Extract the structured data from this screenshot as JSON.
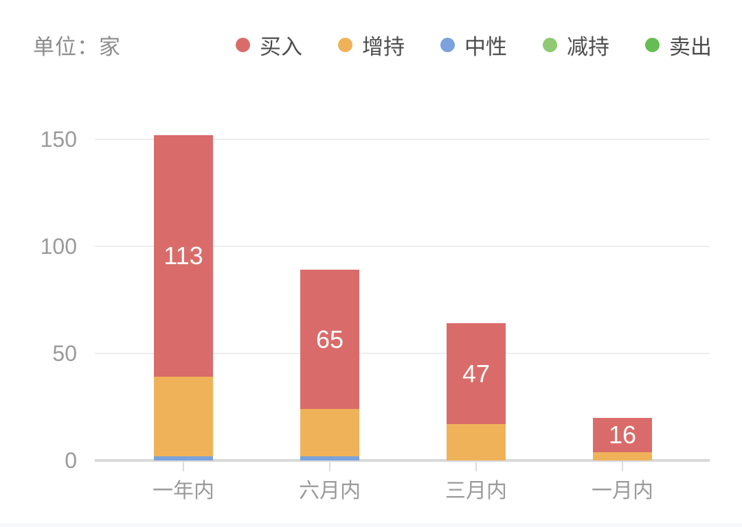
{
  "header": {
    "unit_label": "单位：家"
  },
  "colors": {
    "background": "#ffffff",
    "axis_line": "#d9d9d9",
    "gridline": "#ededed",
    "tick_mark": "#dcdcdc",
    "axis_label_text": "#9a9a9a",
    "legend_text": "#4c4c4c",
    "unit_text": "#8c8c8c",
    "bar_value_text": "#ffffff"
  },
  "chart_data": {
    "type": "bar",
    "stacked": true,
    "title": "",
    "unit": "家",
    "categories": [
      "一年内",
      "六月内",
      "三月内",
      "一月内"
    ],
    "series": [
      {
        "name": "买入",
        "color": "#d96c6a",
        "values": [
          113,
          65,
          47,
          16
        ],
        "labels": [
          "113",
          "65",
          "47",
          "16"
        ]
      },
      {
        "name": "增持",
        "color": "#f0b259",
        "values": [
          37,
          22,
          17,
          4
        ]
      },
      {
        "name": "中性",
        "color": "#7aa2dc",
        "values": [
          2,
          2,
          0,
          0
        ]
      },
      {
        "name": "减持",
        "color": "#8fc973",
        "values": [
          0,
          0,
          0,
          0
        ]
      },
      {
        "name": "卖出",
        "color": "#67bd55",
        "values": [
          0,
          0,
          0,
          0
        ]
      }
    ],
    "totals": [
      152,
      89,
      64,
      20
    ],
    "yticks": [
      0,
      50,
      100,
      150
    ],
    "ylim": [
      0,
      160
    ],
    "xlabel": "",
    "ylabel": "单位：家",
    "grid": true,
    "legend_position": "top"
  }
}
